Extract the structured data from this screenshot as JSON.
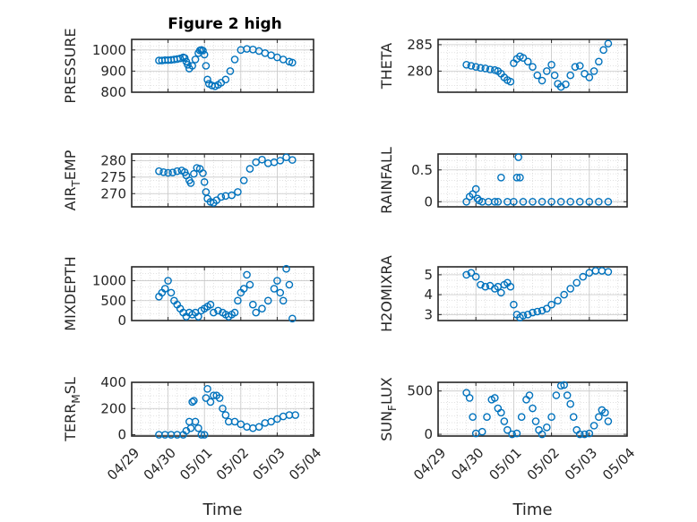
{
  "figure_title": "Figure 2 high",
  "colors": {
    "marker": "#0072BD",
    "grid": "#d9d9d9",
    "axis": "#262626"
  },
  "chart_data": [
    {
      "type": "scatter",
      "title": "Figure 2 high",
      "ylabel": "PRESSURE",
      "ylabel_sub": null,
      "ylim": [
        800,
        1050
      ],
      "yticks": [
        800,
        900,
        1000
      ],
      "yticklabels": [
        "800",
        "900",
        "1000"
      ],
      "grid": "minor-dotted",
      "x": [
        "04/29 18:00",
        "04/29 20:00",
        "04/29 22:00",
        "04/30 00:00",
        "04/30 02:00",
        "04/30 04:00",
        "04/30 06:00",
        "04/30 08:00",
        "04/30 10:00",
        "04/30 11:00",
        "04/30 12:00",
        "04/30 13:00",
        "04/30 14:00",
        "04/30 16:00",
        "04/30 18:00",
        "04/30 20:00",
        "04/30 21:00",
        "04/30 22:00",
        "04/30 23:00",
        "05/01 00:00",
        "05/01 01:00",
        "05/01 02:00",
        "05/01 03:00",
        "05/01 05:00",
        "05/01 07:00",
        "05/01 09:00",
        "05/01 11:00",
        "05/01 14:00",
        "05/01 17:00",
        "05/01 20:00",
        "05/02 00:00",
        "05/02 04:00",
        "05/02 08:00",
        "05/02 12:00",
        "05/02 16:00",
        "05/02 20:00",
        "05/03 00:00",
        "05/03 04:00",
        "05/03 08:00",
        "05/03 10:00"
      ],
      "y": [
        950,
        950,
        952,
        952,
        953,
        955,
        957,
        960,
        965,
        962,
        945,
        930,
        912,
        925,
        955,
        985,
        998,
        1000,
        997,
        978,
        925,
        860,
        840,
        832,
        828,
        835,
        845,
        860,
        900,
        955,
        1000,
        1005,
        1002,
        995,
        985,
        975,
        965,
        955,
        945,
        940
      ]
    },
    {
      "type": "scatter",
      "ylabel": "THETA",
      "ylabel_sub": null,
      "ylim": [
        276,
        286
      ],
      "yticks": [
        280,
        285
      ],
      "yticklabels": [
        "280",
        "285"
      ],
      "grid": "minor-dotted",
      "x": [
        "04/29 18:00",
        "04/29 21:00",
        "04/30 00:00",
        "04/30 03:00",
        "04/30 06:00",
        "04/30 09:00",
        "04/30 12:00",
        "04/30 14:00",
        "04/30 16:00",
        "04/30 18:00",
        "04/30 20:00",
        "04/30 22:00",
        "05/01 00:00",
        "05/01 02:00",
        "05/01 04:00",
        "05/01 06:00",
        "05/01 09:00",
        "05/01 12:00",
        "05/01 15:00",
        "05/01 18:00",
        "05/01 21:00",
        "05/02 00:00",
        "05/02 02:00",
        "05/02 04:00",
        "05/02 06:00",
        "05/02 09:00",
        "05/02 12:00",
        "05/02 15:00",
        "05/02 18:00",
        "05/02 21:00",
        "05/03 00:00",
        "05/03 03:00",
        "05/03 06:00",
        "05/03 09:00",
        "05/03 12:00"
      ],
      "y": [
        281.2,
        281.0,
        280.8,
        280.6,
        280.5,
        280.3,
        280.2,
        280.0,
        279.5,
        278.8,
        278.3,
        278.0,
        281.5,
        282.3,
        282.8,
        282.5,
        281.8,
        280.8,
        279.2,
        278.2,
        280.0,
        281.2,
        279.2,
        277.6,
        277.0,
        277.5,
        279.2,
        280.8,
        281.0,
        279.5,
        278.8,
        280.0,
        281.8,
        284.0,
        285.2
      ]
    },
    {
      "type": "scatter",
      "ylabel": "AIR",
      "ylabel_sub": "T",
      "ylabel_rest": "EMP",
      "ylim": [
        266,
        282
      ],
      "yticks": [
        270,
        275,
        280
      ],
      "yticklabels": [
        "270",
        "275",
        "280"
      ],
      "grid": "minor-dotted",
      "x": [
        "04/29 18:00",
        "04/29 21:00",
        "04/30 00:00",
        "04/30 03:00",
        "04/30 06:00",
        "04/30 09:00",
        "04/30 11:00",
        "04/30 12:00",
        "04/30 14:00",
        "04/30 15:00",
        "04/30 17:00",
        "04/30 19:00",
        "04/30 21:00",
        "04/30 23:00",
        "05/01 00:00",
        "05/01 01:00",
        "05/01 02:00",
        "05/01 04:00",
        "05/01 06:00",
        "05/01 08:00",
        "05/01 11:00",
        "05/01 14:00",
        "05/01 18:00",
        "05/01 22:00",
        "05/02 02:00",
        "05/02 06:00",
        "05/02 10:00",
        "05/02 14:00",
        "05/02 18:00",
        "05/02 22:00",
        "05/03 02:00",
        "05/03 06:00",
        "05/03 10:00"
      ],
      "y": [
        276.8,
        276.5,
        276.3,
        276.4,
        276.8,
        277.0,
        276.5,
        275.5,
        274.0,
        273.2,
        276.0,
        277.8,
        277.5,
        276.2,
        273.5,
        270.5,
        268.5,
        267.5,
        267.2,
        268.0,
        269.0,
        269.3,
        269.5,
        270.5,
        274.0,
        277.5,
        279.5,
        280.3,
        279.2,
        279.5,
        280.0,
        281.0,
        280.2
      ]
    },
    {
      "type": "scatter",
      "ylabel": "RAINFALL",
      "ylabel_sub": null,
      "ylim": [
        -0.08,
        0.75
      ],
      "yticks": [
        0,
        0.5
      ],
      "yticklabels": [
        "0",
        "0.5"
      ],
      "grid": "minor-dotted",
      "x": [
        "04/29 18:00",
        "04/29 20:00",
        "04/29 22:00",
        "04/30 00:00",
        "04/30 01:00",
        "04/30 02:00",
        "04/30 04:00",
        "04/30 08:00",
        "04/30 12:00",
        "04/30 14:00",
        "04/30 16:00",
        "04/30 20:00",
        "05/01 00:00",
        "05/01 02:00",
        "05/01 03:00",
        "05/01 04:00",
        "05/01 06:00",
        "05/01 12:00",
        "05/01 18:00",
        "05/02 00:00",
        "05/02 06:00",
        "05/02 12:00",
        "05/02 18:00",
        "05/03 00:00",
        "05/03 06:00",
        "05/03 12:00"
      ],
      "y": [
        0,
        0.08,
        0.12,
        0.2,
        0.05,
        0.02,
        0,
        0,
        0,
        0,
        0.38,
        0,
        0,
        0.38,
        0.7,
        0.38,
        0,
        0,
        0,
        0,
        0,
        0,
        0,
        0,
        0,
        0
      ]
    },
    {
      "type": "scatter",
      "ylabel": "MIXDEPTH",
      "ylabel_sub": null,
      "ylim": [
        0,
        1350
      ],
      "yticks": [
        0,
        500,
        1000
      ],
      "yticklabels": [
        "0",
        "500",
        "1000"
      ],
      "grid": "minor-dotted",
      "x": [
        "04/29 18:00",
        "04/29 20:00",
        "04/29 22:00",
        "04/30 00:00",
        "04/30 02:00",
        "04/30 04:00",
        "04/30 06:00",
        "04/30 08:00",
        "04/30 10:00",
        "04/30 12:00",
        "04/30 14:00",
        "04/30 16:00",
        "04/30 18:00",
        "04/30 20:00",
        "04/30 22:00",
        "05/01 00:00",
        "05/01 02:00",
        "05/01 04:00",
        "05/01 06:00",
        "05/01 09:00",
        "05/01 12:00",
        "05/01 14:00",
        "05/01 16:00",
        "05/01 18:00",
        "05/01 20:00",
        "05/01 22:00",
        "05/02 00:00",
        "05/02 02:00",
        "05/02 04:00",
        "05/02 06:00",
        "05/02 08:00",
        "05/02 10:00",
        "05/02 14:00",
        "05/02 18:00",
        "05/02 22:00",
        "05/03 00:00",
        "05/03 02:00",
        "05/03 04:00",
        "05/03 06:00",
        "05/03 08:00",
        "05/03 10:00"
      ],
      "y": [
        600,
        700,
        800,
        1000,
        700,
        500,
        400,
        300,
        200,
        100,
        200,
        150,
        200,
        100,
        250,
        300,
        350,
        400,
        200,
        250,
        200,
        150,
        100,
        150,
        200,
        500,
        700,
        800,
        1150,
        900,
        400,
        200,
        300,
        500,
        800,
        1000,
        700,
        500,
        1300,
        900,
        50
      ]
    },
    {
      "type": "scatter",
      "ylabel": "H2OMIXRA",
      "ylabel_sub": null,
      "ylim": [
        2.7,
        5.4
      ],
      "yticks": [
        3,
        4,
        5
      ],
      "yticklabels": [
        "3",
        "4",
        "5"
      ],
      "grid": "minor-dotted",
      "x": [
        "04/29 18:00",
        "04/29 21:00",
        "04/30 00:00",
        "04/30 03:00",
        "04/30 06:00",
        "04/30 09:00",
        "04/30 12:00",
        "04/30 14:00",
        "04/30 16:00",
        "04/30 18:00",
        "04/30 20:00",
        "04/30 22:00",
        "05/01 00:00",
        "05/01 02:00",
        "05/01 04:00",
        "05/01 06:00",
        "05/01 09:00",
        "05/01 12:00",
        "05/01 15:00",
        "05/01 18:00",
        "05/01 21:00",
        "05/02 00:00",
        "05/02 04:00",
        "05/02 08:00",
        "05/02 12:00",
        "05/02 16:00",
        "05/02 20:00",
        "05/03 00:00",
        "05/03 04:00",
        "05/03 08:00",
        "05/03 12:00"
      ],
      "y": [
        5.0,
        5.1,
        4.9,
        4.5,
        4.4,
        4.45,
        4.3,
        4.4,
        4.1,
        4.5,
        4.6,
        4.4,
        3.5,
        3.0,
        2.85,
        2.95,
        3.0,
        3.1,
        3.15,
        3.2,
        3.3,
        3.5,
        3.7,
        4.0,
        4.3,
        4.6,
        4.9,
        5.1,
        5.2,
        5.2,
        5.15
      ]
    },
    {
      "type": "scatter",
      "ylabel": "TERR",
      "ylabel_sub": "M",
      "ylabel_rest": "SL",
      "ylim": [
        -10,
        400
      ],
      "yticks": [
        0,
        200,
        400
      ],
      "yticklabels": [
        "0",
        "200",
        "400"
      ],
      "grid": "minor-dotted",
      "x": [
        "04/29 18:00",
        "04/29 22:00",
        "04/30 02:00",
        "04/30 06:00",
        "04/30 10:00",
        "04/30 12:00",
        "04/30 14:00",
        "04/30 15:00",
        "04/30 16:00",
        "04/30 17:00",
        "04/30 18:00",
        "04/30 20:00",
        "04/30 22:00",
        "05/01 00:00",
        "05/01 01:00",
        "05/01 02:00",
        "05/01 04:00",
        "05/01 06:00",
        "05/01 08:00",
        "05/01 10:00",
        "05/01 12:00",
        "05/01 14:00",
        "05/01 16:00",
        "05/01 20:00",
        "05/02 00:00",
        "05/02 04:00",
        "05/02 08:00",
        "05/02 12:00",
        "05/02 16:00",
        "05/02 20:00",
        "05/03 00:00",
        "05/03 04:00",
        "05/03 08:00",
        "05/03 12:00"
      ],
      "y": [
        0,
        0,
        0,
        0,
        0,
        30,
        100,
        50,
        250,
        260,
        100,
        50,
        0,
        0,
        280,
        350,
        250,
        300,
        300,
        280,
        200,
        150,
        100,
        100,
        80,
        60,
        50,
        60,
        90,
        100,
        120,
        140,
        150,
        150
      ]
    },
    {
      "type": "scatter",
      "ylabel": "SUN",
      "ylabel_sub": "F",
      "ylabel_rest": "LUX",
      "ylim": [
        -20,
        600
      ],
      "yticks": [
        0,
        500
      ],
      "yticklabels": [
        "0",
        "500"
      ],
      "grid": "minor-dotted",
      "x": [
        "04/29 18:00",
        "04/29 20:00",
        "04/29 22:00",
        "04/30 00:00",
        "04/30 04:00",
        "04/30 07:00",
        "04/30 10:00",
        "04/30 12:00",
        "04/30 14:00",
        "04/30 16:00",
        "04/30 18:00",
        "04/30 20:00",
        "04/30 23:00",
        "05/01 02:00",
        "05/01 05:00",
        "05/01 08:00",
        "05/01 10:00",
        "05/01 12:00",
        "05/01 14:00",
        "05/01 16:00",
        "05/01 18:00",
        "05/01 21:00",
        "05/02 00:00",
        "05/02 03:00",
        "05/02 06:00",
        "05/02 08:00",
        "05/02 10:00",
        "05/02 12:00",
        "05/02 14:00",
        "05/02 16:00",
        "05/02 18:00",
        "05/02 21:00",
        "05/03 00:00",
        "05/03 03:00",
        "05/03 06:00",
        "05/03 08:00",
        "05/03 10:00",
        "05/03 12:00"
      ],
      "y": [
        480,
        420,
        200,
        10,
        30,
        200,
        400,
        420,
        300,
        250,
        150,
        50,
        0,
        10,
        200,
        400,
        450,
        300,
        150,
        50,
        0,
        80,
        200,
        450,
        560,
        570,
        450,
        350,
        200,
        50,
        0,
        0,
        10,
        100,
        200,
        280,
        250,
        150
      ]
    }
  ],
  "x_axis": {
    "range": [
      "04/29 00:00",
      "05/04 00:00"
    ],
    "tick_labels": [
      "04/29",
      "04/30",
      "05/01",
      "05/02",
      "05/03",
      "05/04"
    ],
    "label": "Time"
  }
}
